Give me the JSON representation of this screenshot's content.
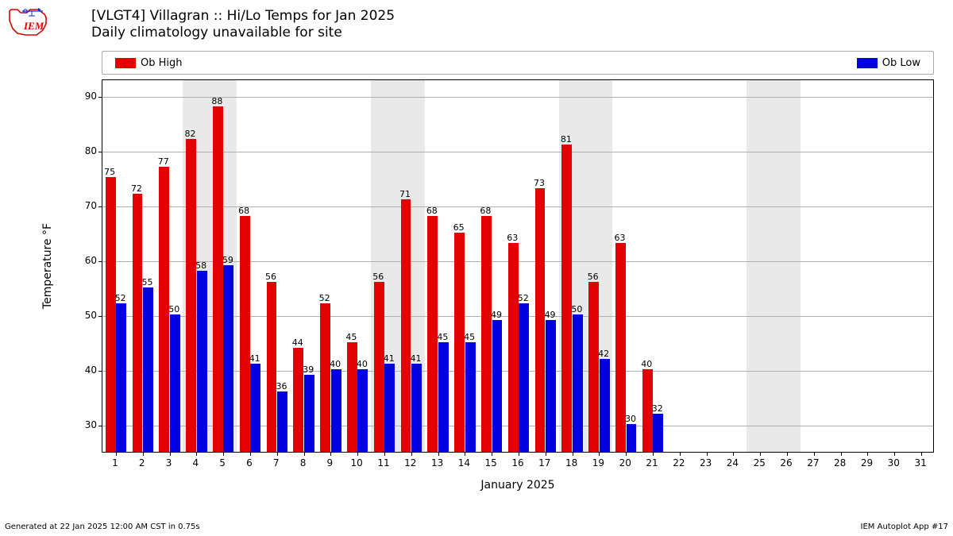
{
  "title": {
    "line1": "[VLGT4] Villagran :: Hi/Lo Temps for Jan 2025",
    "line2": "Daily climatology unavailable for site"
  },
  "logo_text": "IEM",
  "legend": {
    "high": {
      "label": "Ob High",
      "color": "#e20000"
    },
    "low": {
      "label": "Ob Low",
      "color": "#0000e0"
    }
  },
  "chart": {
    "type": "bar",
    "xlabel": "January 2025",
    "ylabel": "Temperature °F",
    "ylim": [
      25,
      93
    ],
    "yticks": [
      30,
      40,
      50,
      60,
      70,
      80,
      90
    ],
    "xdomain": [
      0.5,
      31.5
    ],
    "xticks": [
      1,
      2,
      3,
      4,
      5,
      6,
      7,
      8,
      9,
      10,
      11,
      12,
      13,
      14,
      15,
      16,
      17,
      18,
      19,
      20,
      21,
      22,
      23,
      24,
      25,
      26,
      27,
      28,
      29,
      30,
      31
    ],
    "weekend_bands": [
      [
        3.5,
        5.5
      ],
      [
        10.5,
        12.5
      ],
      [
        17.5,
        19.5
      ],
      [
        24.5,
        26.5
      ]
    ],
    "weekend_color": "#e9e9e9",
    "grid_color": "#b0b0b0",
    "bar_width": 0.38,
    "high_color": "#e20000",
    "low_color": "#0000e0",
    "high_offset": -0.2,
    "low_offset": 0.2,
    "days": [
      1,
      2,
      3,
      4,
      5,
      6,
      7,
      8,
      9,
      10,
      11,
      12,
      13,
      14,
      15,
      16,
      17,
      18,
      19,
      20,
      21
    ],
    "highs": [
      75,
      72,
      77,
      82,
      88,
      68,
      56,
      44,
      52,
      45,
      56,
      71,
      68,
      65,
      68,
      63,
      73,
      81,
      56,
      63,
      40
    ],
    "lows": [
      52,
      55,
      50,
      58,
      59,
      41,
      36,
      39,
      40,
      40,
      41,
      41,
      45,
      45,
      49,
      52,
      49,
      50,
      42,
      30,
      32
    ]
  },
  "footer": {
    "left": "Generated at 22 Jan 2025 12:00 AM CST in 0.75s",
    "right": "IEM Autoplot App #17"
  }
}
